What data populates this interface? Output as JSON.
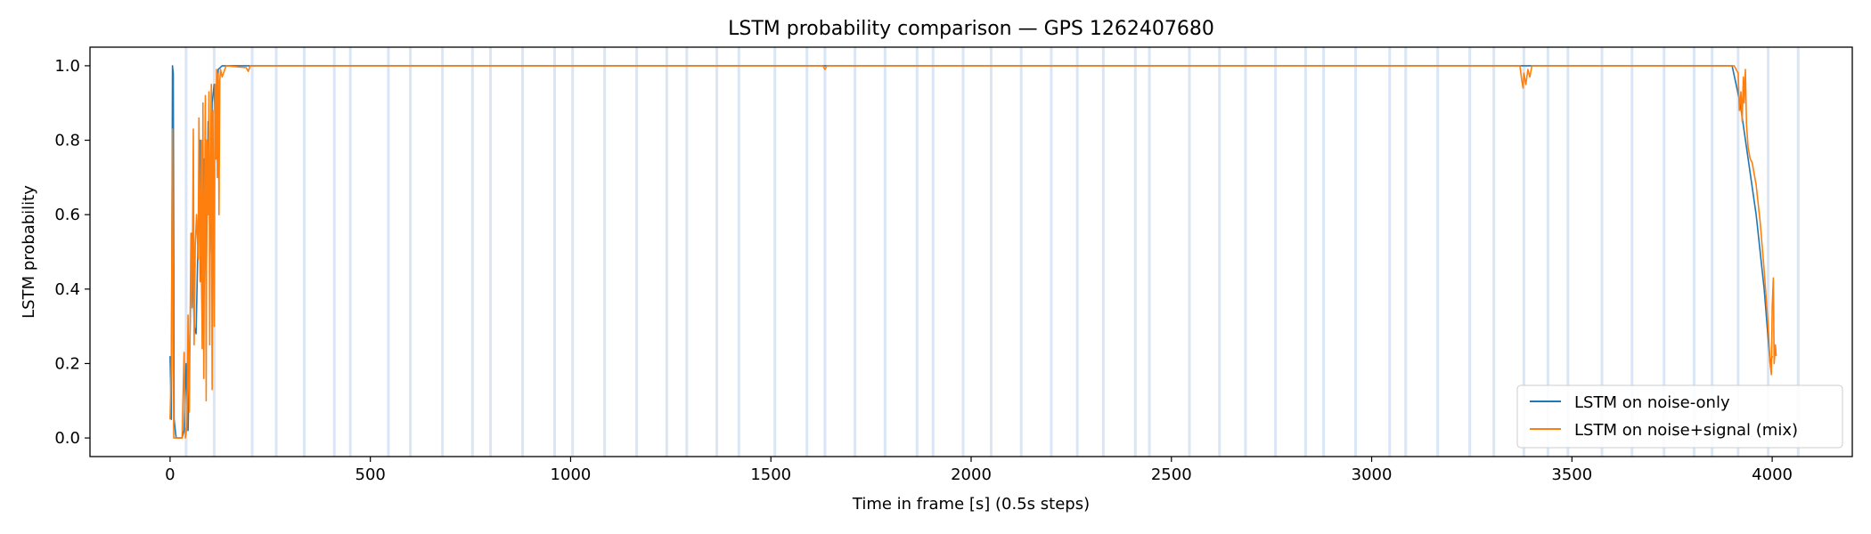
{
  "chart_data": {
    "type": "line",
    "title": "LSTM probability comparison — GPS 1262407680",
    "xlabel": "Time in frame [s] (0.5s steps)",
    "ylabel": "LSTM probability",
    "xlim": [
      -200,
      4200
    ],
    "ylim": [
      -0.05,
      1.05
    ],
    "xticks": [
      0,
      500,
      1000,
      1500,
      2000,
      2500,
      3000,
      3500,
      4000
    ],
    "yticks": [
      0.0,
      0.2,
      0.4,
      0.6,
      0.8,
      1.0
    ],
    "xtick_labels": [
      "0",
      "500",
      "1000",
      "1500",
      "2000",
      "2500",
      "3000",
      "3500",
      "4000"
    ],
    "ytick_labels": [
      "0.0",
      "0.2",
      "0.4",
      "0.6",
      "0.8",
      "1.0"
    ],
    "legend_position": "lower-right",
    "vertical_bands_x": [
      40,
      110,
      205,
      265,
      335,
      410,
      450,
      545,
      600,
      680,
      755,
      800,
      880,
      960,
      1005,
      1085,
      1165,
      1240,
      1290,
      1365,
      1420,
      1510,
      1590,
      1635,
      1710,
      1785,
      1865,
      1905,
      1980,
      2050,
      2125,
      2200,
      2265,
      2330,
      2410,
      2445,
      2545,
      2620,
      2685,
      2760,
      2835,
      2880,
      2960,
      3045,
      3085,
      3165,
      3245,
      3305,
      3380,
      3440,
      3490,
      3575,
      3650,
      3730,
      3805,
      3850,
      3915,
      3990,
      4065
    ],
    "series": [
      {
        "name": "LSTM on noise-only",
        "color": "#1f77b4",
        "points": [
          [
            0,
            0.22
          ],
          [
            3,
            0.05
          ],
          [
            6,
            1.0
          ],
          [
            8,
            0.98
          ],
          [
            10,
            0.05
          ],
          [
            15,
            0.0
          ],
          [
            30,
            0.0
          ],
          [
            35,
            0.02
          ],
          [
            40,
            0.2
          ],
          [
            45,
            0.02
          ],
          [
            50,
            0.3
          ],
          [
            55,
            0.55
          ],
          [
            60,
            0.3
          ],
          [
            65,
            0.28
          ],
          [
            70,
            0.55
          ],
          [
            75,
            0.8
          ],
          [
            80,
            0.3
          ],
          [
            85,
            0.75
          ],
          [
            90,
            0.4
          ],
          [
            95,
            0.85
          ],
          [
            100,
            0.5
          ],
          [
            105,
            0.9
          ],
          [
            110,
            0.95
          ],
          [
            115,
            0.75
          ],
          [
            120,
            0.99
          ],
          [
            130,
            1.0
          ],
          [
            3900,
            1.0
          ],
          [
            3920,
            0.9
          ],
          [
            3940,
            0.75
          ],
          [
            3960,
            0.6
          ],
          [
            3980,
            0.4
          ],
          [
            3995,
            0.2
          ],
          [
            4000,
            0.22
          ]
        ]
      },
      {
        "name": "LSTM on noise+signal (mix)",
        "color": "#ff7f0e",
        "points": [
          [
            0,
            0.05
          ],
          [
            3,
            0.2
          ],
          [
            6,
            0.83
          ],
          [
            9,
            0.0
          ],
          [
            20,
            0.0
          ],
          [
            30,
            0.0
          ],
          [
            35,
            0.23
          ],
          [
            38,
            0.0
          ],
          [
            42,
            0.03
          ],
          [
            45,
            0.33
          ],
          [
            48,
            0.07
          ],
          [
            52,
            0.55
          ],
          [
            55,
            0.35
          ],
          [
            58,
            0.83
          ],
          [
            60,
            0.25
          ],
          [
            63,
            0.52
          ],
          [
            66,
            0.6
          ],
          [
            70,
            0.48
          ],
          [
            72,
            0.86
          ],
          [
            75,
            0.42
          ],
          [
            78,
            0.8
          ],
          [
            80,
            0.24
          ],
          [
            82,
            0.9
          ],
          [
            84,
            0.16
          ],
          [
            86,
            0.6
          ],
          [
            88,
            0.92
          ],
          [
            90,
            0.1
          ],
          [
            92,
            0.8
          ],
          [
            95,
            0.6
          ],
          [
            97,
            0.93
          ],
          [
            99,
            0.25
          ],
          [
            101,
            0.75
          ],
          [
            103,
            0.95
          ],
          [
            105,
            0.13
          ],
          [
            107,
            0.88
          ],
          [
            110,
            0.3
          ],
          [
            112,
            0.95
          ],
          [
            114,
            0.75
          ],
          [
            116,
            0.99
          ],
          [
            118,
            0.7
          ],
          [
            120,
            0.98
          ],
          [
            122,
            0.6
          ],
          [
            124,
            0.96
          ],
          [
            126,
            0.99
          ],
          [
            130,
            0.97
          ],
          [
            140,
            1.0
          ],
          [
            190,
            0.995
          ],
          [
            195,
            0.985
          ],
          [
            200,
            1.0
          ],
          [
            1630,
            1.0
          ],
          [
            1635,
            0.99
          ],
          [
            1640,
            1.0
          ],
          [
            3370,
            1.0
          ],
          [
            3375,
            0.96
          ],
          [
            3378,
            0.94
          ],
          [
            3380,
            0.98
          ],
          [
            3385,
            0.95
          ],
          [
            3390,
            0.99
          ],
          [
            3395,
            0.97
          ],
          [
            3400,
            1.0
          ],
          [
            3905,
            1.0
          ],
          [
            3915,
            0.98
          ],
          [
            3918,
            0.88
          ],
          [
            3922,
            0.93
          ],
          [
            3925,
            0.85
          ],
          [
            3928,
            0.97
          ],
          [
            3930,
            0.9
          ],
          [
            3933,
            0.99
          ],
          [
            3936,
            0.84
          ],
          [
            3940,
            0.78
          ],
          [
            3945,
            0.75
          ],
          [
            3950,
            0.74
          ],
          [
            3960,
            0.68
          ],
          [
            3970,
            0.58
          ],
          [
            3980,
            0.45
          ],
          [
            3990,
            0.3
          ],
          [
            3995,
            0.2
          ],
          [
            3998,
            0.17
          ],
          [
            4000,
            0.35
          ],
          [
            4003,
            0.43
          ],
          [
            4005,
            0.2
          ],
          [
            4008,
            0.25
          ],
          [
            4010,
            0.22
          ]
        ]
      }
    ]
  }
}
